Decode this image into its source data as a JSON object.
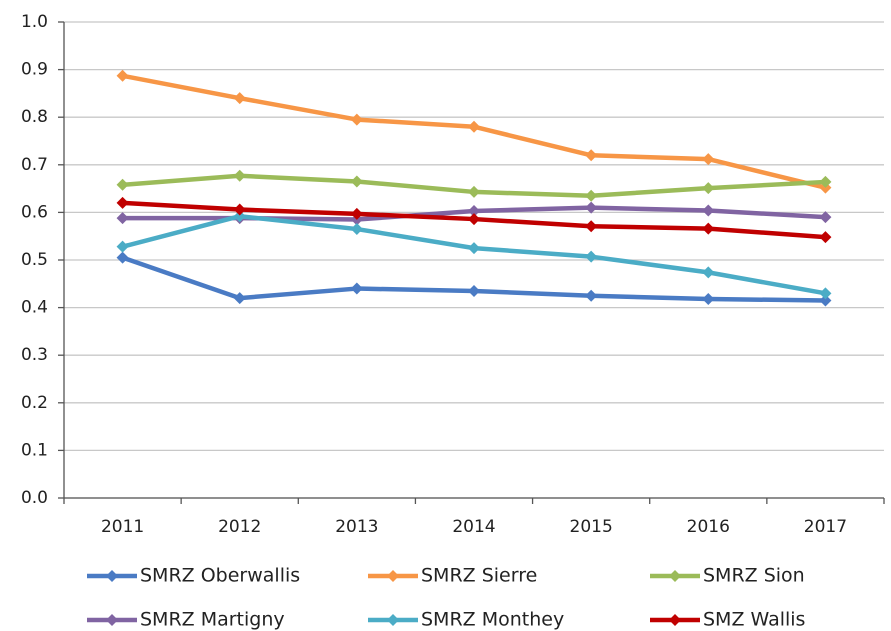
{
  "chart_data": {
    "type": "line",
    "categories": [
      "2011",
      "2012",
      "2013",
      "2014",
      "2015",
      "2016",
      "2017"
    ],
    "ylim": [
      0,
      1
    ],
    "yticks": [
      {
        "value": 0,
        "label": "0.0"
      },
      0.1,
      0.2,
      0.3,
      0.4,
      0.5,
      0.6,
      0.7,
      0.8,
      0.9,
      {
        "value": 1,
        "label": "1.0"
      }
    ],
    "grid": true,
    "legend": "bottom",
    "series": [
      {
        "name": "SMRZ Oberwallis",
        "color": "#4a7bc4",
        "values": [
          0.505,
          0.42,
          0.44,
          0.435,
          0.425,
          0.418,
          0.415
        ]
      },
      {
        "name": "SMRZ Sierre",
        "color": "#f79646",
        "values": [
          0.887,
          0.84,
          0.795,
          0.78,
          0.72,
          0.712,
          0.652
        ]
      },
      {
        "name": "SMRZ Sion",
        "color": "#9bbb59",
        "values": [
          0.658,
          0.677,
          0.665,
          0.643,
          0.635,
          0.651,
          0.664
        ]
      },
      {
        "name": "SMRZ Martigny",
        "color": "#8064a2",
        "values": [
          0.588,
          0.588,
          0.585,
          0.603,
          0.61,
          0.604,
          0.59
        ]
      },
      {
        "name": "SMRZ Monthey",
        "color": "#4bacc6",
        "values": [
          0.528,
          0.592,
          0.565,
          0.525,
          0.507,
          0.474,
          0.43
        ]
      },
      {
        "name": "SMZ Wallis",
        "color": "#c00000",
        "values": [
          0.62,
          0.606,
          0.597,
          0.586,
          0.571,
          0.566,
          0.548
        ]
      }
    ]
  }
}
